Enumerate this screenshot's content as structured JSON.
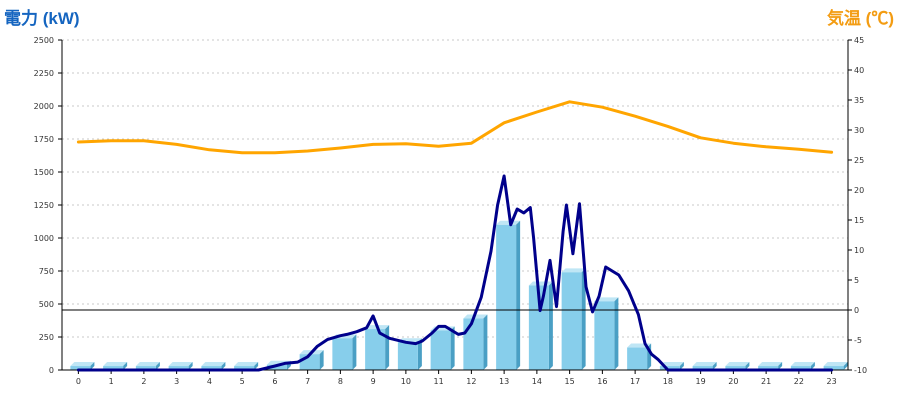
{
  "chart_data": {
    "type": "bar+line",
    "left_axis_label": "電力 (kW)",
    "right_axis_label": "気温 (℃)",
    "ylim_left": [
      0,
      2500
    ],
    "ylim_right": [
      -10,
      45
    ],
    "y_ticks_left": [
      0,
      250,
      500,
      750,
      1000,
      1250,
      1500,
      1750,
      2000,
      2250,
      2500
    ],
    "y_ticks_right": [
      -10,
      -5,
      0,
      5,
      10,
      15,
      20,
      25,
      30,
      35,
      40,
      45
    ],
    "categories": [
      "0",
      "1",
      "2",
      "3",
      "4",
      "5",
      "6",
      "7",
      "8",
      "9",
      "10",
      "11",
      "12",
      "13",
      "14",
      "15",
      "16",
      "17",
      "18",
      "19",
      "20",
      "21",
      "22",
      "23"
    ],
    "grid": "horizontal dashed",
    "series": [
      {
        "kind": "bar",
        "axis": "left",
        "color": "#87ceeb",
        "values": [
          30,
          30,
          30,
          30,
          30,
          30,
          40,
          120,
          240,
          310,
          210,
          300,
          390,
          1100,
          640,
          740,
          520,
          170,
          30,
          30,
          30,
          30,
          30,
          30
        ]
      },
      {
        "kind": "line",
        "axis": "left",
        "color": "#00008b",
        "x": [
          0,
          1,
          2,
          3,
          4,
          5,
          5.5,
          6,
          6.3,
          6.7,
          7,
          7.3,
          7.6,
          8,
          8.2,
          8.5,
          8.8,
          9.0,
          9.2,
          9.5,
          10,
          10.3,
          10.5,
          10.8,
          11,
          11.2,
          11.4,
          11.6,
          11.8,
          12,
          12.3,
          12.6,
          12.8,
          13.0,
          13.2,
          13.4,
          13.6,
          13.8,
          13.9,
          14.1,
          14.2,
          14.4,
          14.6,
          14.8,
          14.9,
          15.1,
          15.3,
          15.5,
          15.7,
          15.9,
          16.1,
          16.3,
          16.5,
          16.8,
          17.1,
          17.3,
          17.5,
          17.7,
          18,
          19,
          20,
          21,
          22,
          23
        ],
        "y": [
          0,
          0,
          0,
          0,
          0,
          0,
          0,
          30,
          50,
          60,
          100,
          180,
          230,
          260,
          270,
          290,
          320,
          410,
          280,
          240,
          210,
          200,
          220,
          280,
          330,
          330,
          300,
          270,
          280,
          350,
          550,
          900,
          1250,
          1470,
          1100,
          1220,
          1190,
          1230,
          1000,
          450,
          560,
          830,
          480,
          1050,
          1250,
          880,
          1260,
          630,
          440,
          560,
          780,
          750,
          720,
          600,
          420,
          200,
          120,
          80,
          0,
          0,
          0,
          0,
          0,
          0
        ]
      },
      {
        "kind": "line",
        "axis": "right",
        "color": "#ffa500",
        "values": [
          28,
          28.2,
          28.2,
          27.6,
          26.7,
          26.2,
          26.2,
          26.5,
          27,
          27.6,
          27.7,
          27.3,
          27.8,
          31.2,
          33,
          34.7,
          33.8,
          32.3,
          30.6,
          28.7,
          27.8,
          27.2,
          26.8,
          26.3
        ]
      }
    ]
  }
}
